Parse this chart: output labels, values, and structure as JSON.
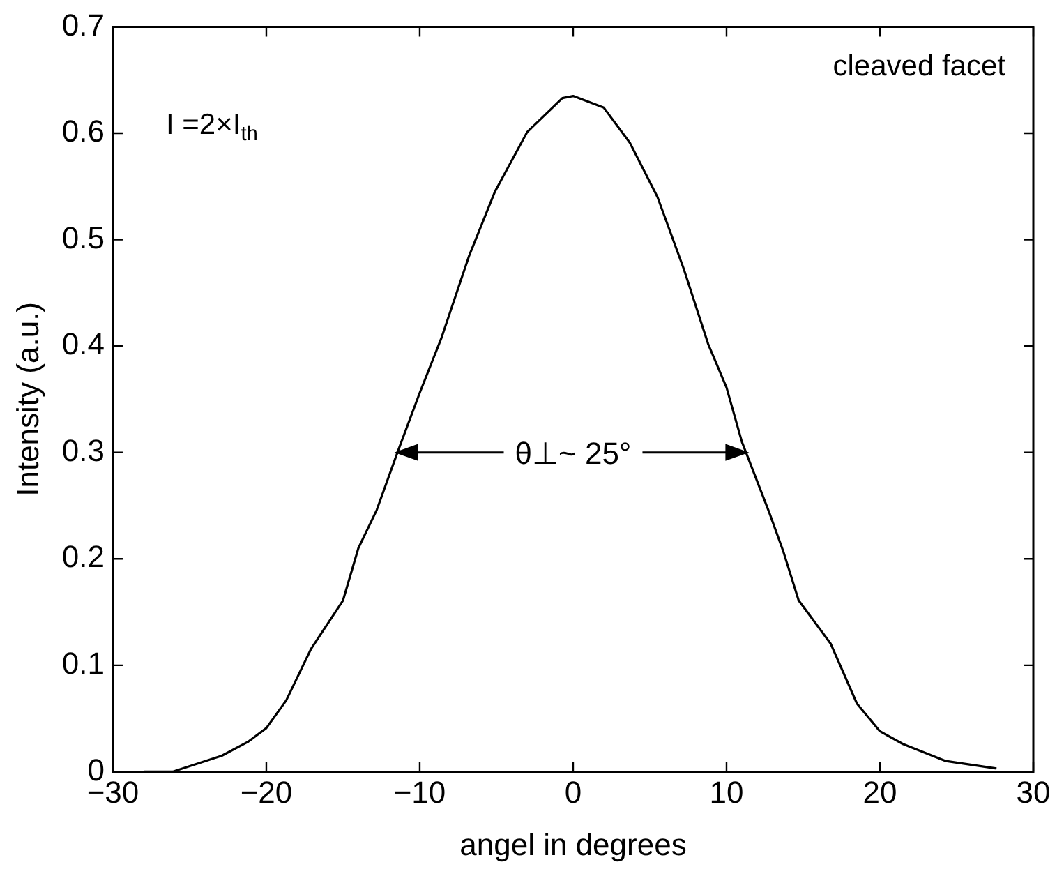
{
  "chart_data": {
    "type": "line",
    "xlabel": "angel in degrees",
    "ylabel": "Intensity (a.u.)",
    "annotations": [
      "I =2×I$_{th}$",
      "cleaved facet",
      "θ⊥~ 25°"
    ],
    "series": [
      {
        "color": "#000000",
        "x": [
          -28,
          -26.1,
          -22.9,
          -21.2,
          -20,
          -18.7,
          -17.1,
          -15,
          -14,
          -12.8,
          -11.4,
          -10,
          -8.6,
          -6.8,
          -5.1,
          -3,
          -0.7,
          0,
          2,
          3.7,
          5.5,
          7.2,
          8.8,
          10,
          11,
          12.8,
          13.7,
          14.7,
          16.8,
          18.5,
          20,
          21.5,
          24.3,
          27.6
        ],
        "values": [
          0,
          0,
          0.015,
          0.028,
          0.041,
          0.067,
          0.115,
          0.161,
          0.21,
          0.246,
          0.302,
          0.356,
          0.407,
          0.484,
          0.545,
          0.601,
          0.633,
          0.635,
          0.624,
          0.591,
          0.54,
          0.473,
          0.402,
          0.361,
          0.31,
          0.243,
          0.207,
          0.161,
          0.12,
          0.064,
          0.038,
          0.026,
          0.01,
          0.003
        ]
      }
    ],
    "xlim": [
      -30,
      30
    ],
    "xticks": [
      -30,
      -20,
      -10,
      0,
      10,
      20,
      30
    ],
    "ylim": [
      0,
      0.7
    ],
    "yticks": [
      0,
      0.1,
      0.2,
      0.3,
      0.4,
      0.5,
      0.6,
      0.7
    ],
    "grid": false,
    "legend": false,
    "marker": "none",
    "line_style": "solid"
  }
}
